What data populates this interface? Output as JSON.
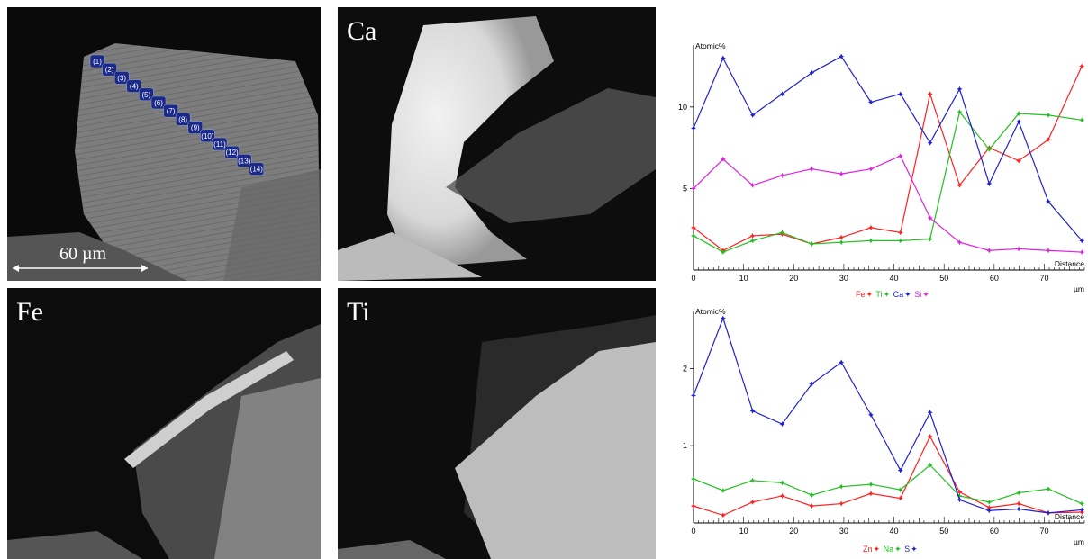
{
  "panels": {
    "sem": {
      "scale_label": "60 µm"
    },
    "ca": {
      "label": "Ca"
    },
    "fe": {
      "label": "Fe"
    },
    "ti": {
      "label": "Ti"
    },
    "markers": [
      "(1)",
      "(2)",
      "(3)",
      "(4)",
      "(5)",
      "(6)",
      "(7)",
      "(8)",
      "(9)",
      "(10)",
      "(11)",
      "(12)",
      "(13)",
      "(14)"
    ]
  },
  "colors": {
    "Fe": "#ff2020",
    "Ti": "#20c020",
    "Ca": "#2020d0",
    "Si": "#e020e0",
    "Zn": "#ff2020",
    "Na": "#20c020",
    "S": "#2020d0"
  },
  "chart_data": [
    {
      "type": "line",
      "ylabel": "Atomic%",
      "xlabel": "Distance",
      "xunit": "µm",
      "xlim": [
        0,
        78
      ],
      "ylim": [
        0,
        13.8
      ],
      "xticks": [
        0,
        10,
        20,
        30,
        40,
        50,
        60,
        70
      ],
      "yticks": [
        5,
        10
      ],
      "x": [
        0,
        5.9,
        11.8,
        17.7,
        23.6,
        29.5,
        35.4,
        41.3,
        47.2,
        53.1,
        59.0,
        64.9,
        70.8,
        77.5
      ],
      "series": [
        {
          "name": "Fe",
          "color": "#ff2020",
          "values": [
            2.6,
            1.2,
            2.1,
            2.2,
            1.6,
            2.0,
            2.6,
            2.3,
            10.8,
            5.2,
            7.5,
            6.7,
            8.0,
            12.5
          ]
        },
        {
          "name": "Ti",
          "color": "#20c020",
          "values": [
            2.1,
            1.1,
            1.8,
            2.3,
            1.6,
            1.7,
            1.8,
            1.8,
            1.9,
            9.7,
            7.4,
            9.6,
            9.5,
            9.2
          ]
        },
        {
          "name": "Ca",
          "color": "#2020d0",
          "values": [
            8.7,
            13.0,
            9.5,
            10.8,
            12.1,
            13.1,
            10.3,
            10.8,
            7.8,
            11.1,
            5.3,
            9.1,
            4.2,
            1.8
          ]
        },
        {
          "name": "Si",
          "color": "#e020e0",
          "values": [
            5.0,
            6.8,
            5.2,
            5.8,
            6.2,
            5.9,
            6.2,
            7.0,
            3.2,
            1.7,
            1.2,
            1.3,
            1.2,
            1.1
          ]
        }
      ]
    },
    {
      "type": "line",
      "ylabel": "Atomic%",
      "xlabel": "Distance",
      "xunit": "µm",
      "xlim": [
        0,
        78
      ],
      "ylim": [
        0,
        2.75
      ],
      "xticks": [
        0,
        10,
        20,
        30,
        40,
        50,
        60,
        70
      ],
      "yticks": [
        1,
        2
      ],
      "x": [
        0,
        5.9,
        11.8,
        17.7,
        23.6,
        29.5,
        35.4,
        41.3,
        47.2,
        53.1,
        59.0,
        64.9,
        70.8,
        77.5
      ],
      "series": [
        {
          "name": "Zn",
          "color": "#ff2020",
          "values": [
            0.22,
            0.1,
            0.27,
            0.35,
            0.22,
            0.25,
            0.38,
            0.32,
            1.12,
            0.4,
            0.2,
            0.25,
            0.13,
            0.14
          ]
        },
        {
          "name": "Na",
          "color": "#20c020",
          "values": [
            0.57,
            0.42,
            0.55,
            0.52,
            0.36,
            0.47,
            0.5,
            0.43,
            0.75,
            0.35,
            0.27,
            0.39,
            0.44,
            0.25
          ]
        },
        {
          "name": "S",
          "color": "#2020d0",
          "values": [
            1.65,
            2.65,
            1.45,
            1.28,
            1.8,
            2.08,
            1.4,
            0.68,
            1.43,
            0.3,
            0.16,
            0.18,
            0.13,
            0.17
          ]
        }
      ]
    }
  ]
}
